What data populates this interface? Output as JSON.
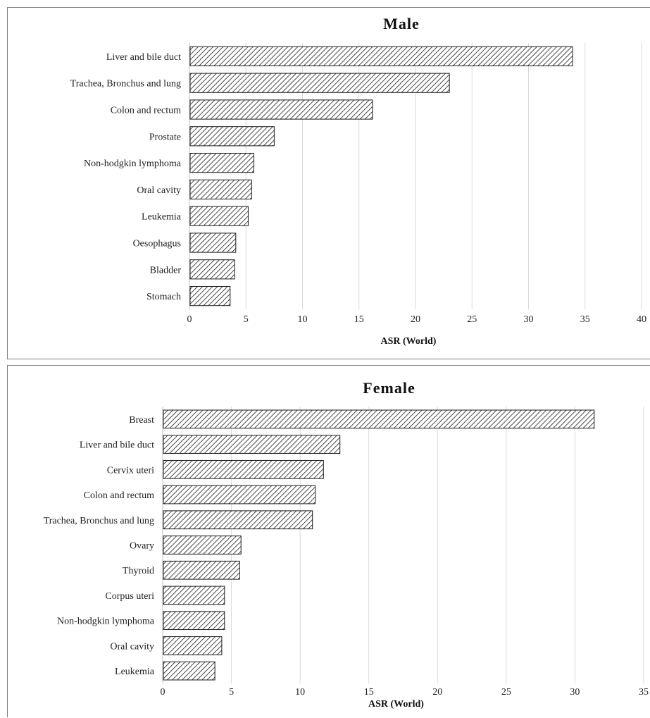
{
  "chart_data": [
    {
      "type": "bar",
      "orientation": "horizontal",
      "title": "Male",
      "xlabel": "ASR (World)",
      "ylabel": "",
      "xlim": [
        0,
        40
      ],
      "x_ticks": [
        "0",
        "5",
        "10",
        "15",
        "20",
        "25",
        "30",
        "35",
        "40"
      ],
      "grid": "vertical",
      "legend": "none",
      "categories": [
        "Liver and bile duct",
        "Trachea, Bronchus and lung",
        "Colon and rectum",
        "Prostate",
        "Non-hodgkin lymphoma",
        "Oral cavity",
        "Leukemia",
        "Oesophagus",
        "Bladder",
        "Stomach"
      ],
      "values": [
        33.9,
        23.0,
        16.2,
        7.5,
        5.7,
        5.5,
        5.2,
        4.1,
        4.0,
        3.6
      ]
    },
    {
      "type": "bar",
      "orientation": "horizontal",
      "title": "Female",
      "xlabel": "ASR (World)",
      "ylabel": "",
      "xlim": [
        0,
        35
      ],
      "x_ticks": [
        "0",
        "5",
        "10",
        "15",
        "20",
        "25",
        "30",
        "35"
      ],
      "grid": "vertical",
      "legend": "none",
      "categories": [
        "Breast",
        "Liver and bile duct",
        "Cervix uteri",
        "Colon and rectum",
        "Trachea, Bronchus and lung",
        "Ovary",
        "Thyroid",
        "Corpus uteri",
        "Non-hodgkin lymphoma",
        "Oral cavity",
        "Leukemia"
      ],
      "values": [
        31.4,
        12.9,
        11.7,
        11.1,
        10.9,
        5.7,
        5.6,
        4.5,
        4.5,
        4.3,
        3.8
      ]
    }
  ],
  "colors": {
    "bar_fill": "#ffffff",
    "hatch": "#1a1a1a",
    "bar_stroke": "#1a1a1a",
    "grid": "#d9d9d9",
    "axis": "#bfbfbf",
    "frame": "#7f7f7f"
  }
}
